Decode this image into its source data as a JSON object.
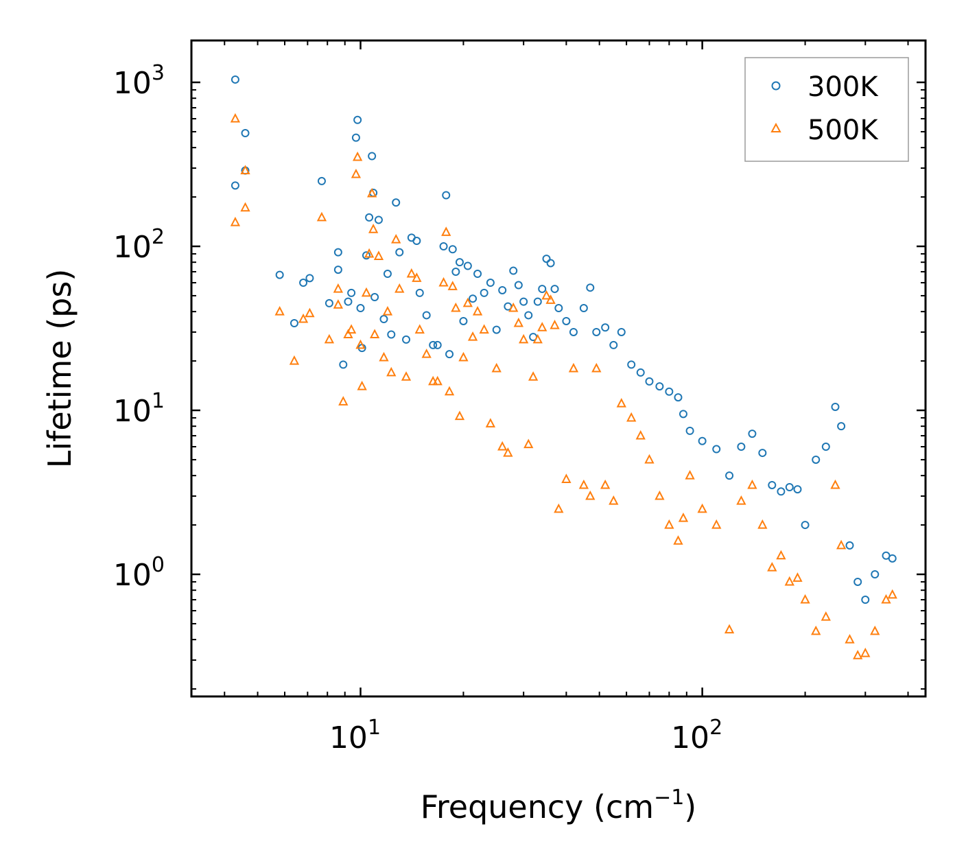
{
  "chart_data": {
    "type": "scatter",
    "title": "",
    "xlabel": "Frequency (cm",
    "xlabel_exp": "−1",
    "xlabel_end": ")",
    "ylabel": "Lifetime (ps)",
    "xscale": "log",
    "yscale": "log",
    "xlim": [
      3.2,
      450
    ],
    "ylim": [
      0.18,
      1800
    ],
    "x_ticks": [
      {
        "value": 10,
        "base": "10",
        "exp": "1"
      },
      {
        "value": 100,
        "base": "10",
        "exp": "2"
      }
    ],
    "y_ticks": [
      {
        "value": 1,
        "base": "10",
        "exp": "0"
      },
      {
        "value": 10,
        "base": "10",
        "exp": "1"
      },
      {
        "value": 100,
        "base": "10",
        "exp": "2"
      },
      {
        "value": 1000,
        "base": "10",
        "exp": "3"
      }
    ],
    "legend_position": "top-right",
    "series": [
      {
        "name": "300K",
        "marker": "circle",
        "color": "#1f77b4",
        "points": [
          [
            4.3,
            1040
          ],
          [
            4.6,
            490
          ],
          [
            4.6,
            290
          ],
          [
            4.3,
            235
          ],
          [
            5.8,
            67
          ],
          [
            6.4,
            34
          ],
          [
            6.8,
            60
          ],
          [
            7.1,
            64
          ],
          [
            7.7,
            250
          ],
          [
            8.1,
            45
          ],
          [
            8.6,
            92
          ],
          [
            8.6,
            72
          ],
          [
            8.9,
            19
          ],
          [
            9.2,
            46
          ],
          [
            9.4,
            52
          ],
          [
            9.7,
            460
          ],
          [
            9.8,
            590
          ],
          [
            10.0,
            42
          ],
          [
            10.1,
            24
          ],
          [
            10.4,
            88
          ],
          [
            10.6,
            150
          ],
          [
            10.8,
            355
          ],
          [
            10.9,
            212
          ],
          [
            11.0,
            49
          ],
          [
            11.3,
            145
          ],
          [
            11.7,
            36
          ],
          [
            12.0,
            68
          ],
          [
            12.3,
            29
          ],
          [
            12.7,
            185
          ],
          [
            13.0,
            92
          ],
          [
            13.6,
            27
          ],
          [
            14.1,
            113
          ],
          [
            14.6,
            108
          ],
          [
            14.9,
            52
          ],
          [
            15.6,
            38
          ],
          [
            16.3,
            25
          ],
          [
            16.8,
            25
          ],
          [
            17.5,
            100
          ],
          [
            17.8,
            205
          ],
          [
            18.2,
            22
          ],
          [
            18.6,
            96
          ],
          [
            19.0,
            70
          ],
          [
            19.5,
            80
          ],
          [
            20.0,
            35
          ],
          [
            20.6,
            76
          ],
          [
            21.3,
            48
          ],
          [
            22.0,
            68
          ],
          [
            23.0,
            52
          ],
          [
            24.0,
            60
          ],
          [
            25.0,
            31
          ],
          [
            26.0,
            54
          ],
          [
            27.0,
            43
          ],
          [
            28.0,
            71
          ],
          [
            29.0,
            58
          ],
          [
            30.0,
            46
          ],
          [
            31.0,
            38
          ],
          [
            32.0,
            28
          ],
          [
            33.0,
            46
          ],
          [
            34.0,
            55
          ],
          [
            35.0,
            84
          ],
          [
            36.0,
            79
          ],
          [
            37.0,
            55
          ],
          [
            38.0,
            42
          ],
          [
            40.0,
            35
          ],
          [
            42.0,
            30
          ],
          [
            45.0,
            42
          ],
          [
            47.0,
            56
          ],
          [
            49.0,
            30
          ],
          [
            52.0,
            32
          ],
          [
            55.0,
            25
          ],
          [
            58.0,
            30
          ],
          [
            62.0,
            19
          ],
          [
            66.0,
            17
          ],
          [
            70.0,
            15
          ],
          [
            75.0,
            14
          ],
          [
            80.0,
            13
          ],
          [
            85.0,
            12
          ],
          [
            88.0,
            9.5
          ],
          [
            92.0,
            7.5
          ],
          [
            100.0,
            6.5
          ],
          [
            110.0,
            5.8
          ],
          [
            120.0,
            4.0
          ],
          [
            130.0,
            6.0
          ],
          [
            140.0,
            7.2
          ],
          [
            150.0,
            5.5
          ],
          [
            160.0,
            3.5
          ],
          [
            170.0,
            3.2
          ],
          [
            180.0,
            3.4
          ],
          [
            190.0,
            3.3
          ],
          [
            200.0,
            2.0
          ],
          [
            215.0,
            5.0
          ],
          [
            230.0,
            6.0
          ],
          [
            245.0,
            10.5
          ],
          [
            255.0,
            8.0
          ],
          [
            270.0,
            1.5
          ],
          [
            285.0,
            0.9
          ],
          [
            300.0,
            0.7
          ],
          [
            320.0,
            1.0
          ],
          [
            345.0,
            1.3
          ],
          [
            360.0,
            1.25
          ]
        ]
      },
      {
        "name": "500K",
        "marker": "triangle",
        "color": "#ff7f0e",
        "points": [
          [
            4.3,
            600
          ],
          [
            4.6,
            290
          ],
          [
            4.6,
            172
          ],
          [
            4.3,
            140
          ],
          [
            5.8,
            40
          ],
          [
            6.4,
            20
          ],
          [
            6.8,
            36
          ],
          [
            7.1,
            39
          ],
          [
            7.7,
            150
          ],
          [
            8.1,
            27
          ],
          [
            8.6,
            55
          ],
          [
            8.6,
            44
          ],
          [
            8.9,
            11.3
          ],
          [
            9.2,
            29
          ],
          [
            9.4,
            31
          ],
          [
            9.7,
            275
          ],
          [
            9.8,
            350
          ],
          [
            10.0,
            25
          ],
          [
            10.1,
            14
          ],
          [
            10.4,
            52
          ],
          [
            10.6,
            90
          ],
          [
            10.8,
            210
          ],
          [
            10.9,
            127
          ],
          [
            11.0,
            29
          ],
          [
            11.3,
            87
          ],
          [
            11.7,
            21
          ],
          [
            12.0,
            40
          ],
          [
            12.3,
            17
          ],
          [
            12.7,
            110
          ],
          [
            13.0,
            55
          ],
          [
            13.6,
            16
          ],
          [
            14.1,
            68
          ],
          [
            14.6,
            64
          ],
          [
            14.9,
            31
          ],
          [
            15.6,
            22
          ],
          [
            16.3,
            15
          ],
          [
            16.8,
            15
          ],
          [
            17.5,
            60
          ],
          [
            17.8,
            122
          ],
          [
            18.2,
            13
          ],
          [
            18.6,
            57
          ],
          [
            19.0,
            42
          ],
          [
            19.5,
            9.2
          ],
          [
            20.0,
            21
          ],
          [
            20.6,
            45
          ],
          [
            21.3,
            28
          ],
          [
            22.0,
            40
          ],
          [
            23.0,
            31
          ],
          [
            24.0,
            8.3
          ],
          [
            25.0,
            18
          ],
          [
            26.0,
            6.0
          ],
          [
            27.0,
            5.5
          ],
          [
            28.0,
            42
          ],
          [
            29.0,
            34
          ],
          [
            30.0,
            27
          ],
          [
            31.0,
            6.2
          ],
          [
            32.0,
            16
          ],
          [
            33.0,
            27
          ],
          [
            34.0,
            32
          ],
          [
            35.0,
            50
          ],
          [
            36.0,
            47
          ],
          [
            37.0,
            33
          ],
          [
            38.0,
            2.5
          ],
          [
            40.0,
            3.8
          ],
          [
            42.0,
            18
          ],
          [
            45.0,
            3.5
          ],
          [
            47.0,
            3.0
          ],
          [
            49.0,
            18
          ],
          [
            52.0,
            3.5
          ],
          [
            55.0,
            2.8
          ],
          [
            58.0,
            11
          ],
          [
            62.0,
            9
          ],
          [
            66.0,
            7
          ],
          [
            70.0,
            5
          ],
          [
            75.0,
            3.0
          ],
          [
            80.0,
            2.0
          ],
          [
            85.0,
            1.6
          ],
          [
            88.0,
            2.2
          ],
          [
            92.0,
            4.0
          ],
          [
            100.0,
            2.5
          ],
          [
            110.0,
            2.0
          ],
          [
            120.0,
            0.46
          ],
          [
            130.0,
            2.8
          ],
          [
            140.0,
            3.5
          ],
          [
            150.0,
            2.0
          ],
          [
            160.0,
            1.1
          ],
          [
            170.0,
            1.3
          ],
          [
            180.0,
            0.9
          ],
          [
            190.0,
            0.95
          ],
          [
            200.0,
            0.7
          ],
          [
            215.0,
            0.45
          ],
          [
            230.0,
            0.55
          ],
          [
            245.0,
            3.5
          ],
          [
            255.0,
            1.5
          ],
          [
            270.0,
            0.4
          ],
          [
            285.0,
            0.32
          ],
          [
            300.0,
            0.33
          ],
          [
            320.0,
            0.45
          ],
          [
            345.0,
            0.7
          ],
          [
            360.0,
            0.75
          ]
        ]
      }
    ]
  }
}
